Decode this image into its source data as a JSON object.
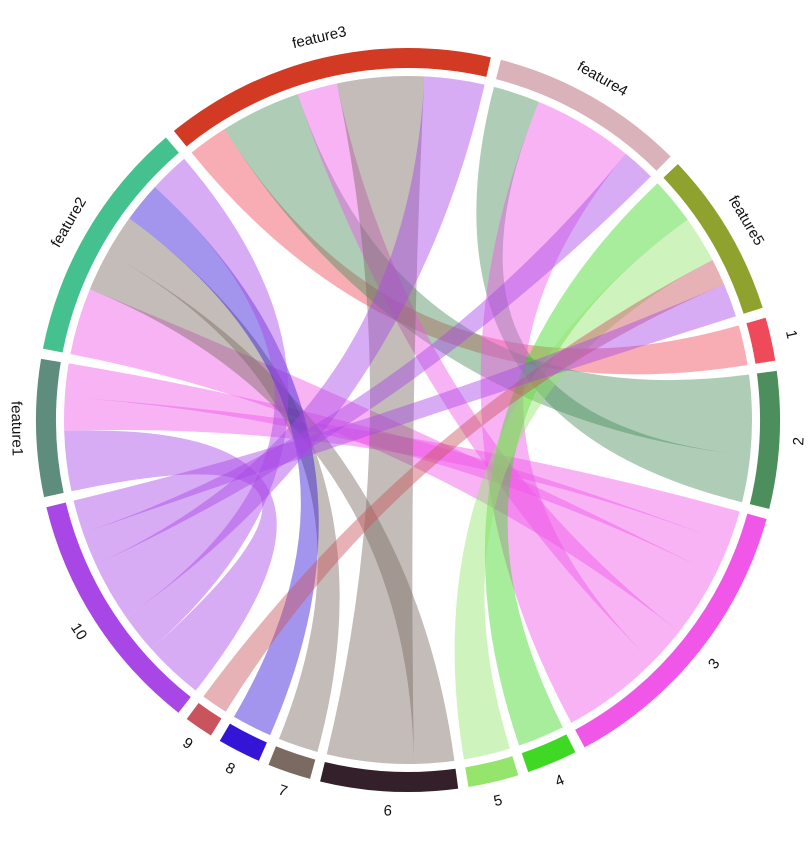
{
  "chart_data": {
    "type": "chord",
    "title": "",
    "sectors": [
      {
        "name": "feature3",
        "label": "feature3",
        "color": "#d23a24",
        "side": "feature"
      },
      {
        "name": "feature4",
        "label": "feature4",
        "color": "#d9b3b9",
        "side": "feature"
      },
      {
        "name": "feature5",
        "label": "feature5",
        "color": "#8fa22e",
        "side": "feature"
      },
      {
        "name": "1",
        "label": "1",
        "color": "#ef4a5a",
        "side": "group"
      },
      {
        "name": "2",
        "label": "2",
        "color": "#4c8f5d",
        "side": "group"
      },
      {
        "name": "3",
        "label": "3",
        "color": "#f057e8",
        "side": "group"
      },
      {
        "name": "4",
        "label": "4",
        "color": "#3fd824",
        "side": "group"
      },
      {
        "name": "5",
        "label": "5",
        "color": "#95e56c",
        "side": "group"
      },
      {
        "name": "6",
        "label": "6",
        "color": "#33202a",
        "side": "group"
      },
      {
        "name": "7",
        "label": "7",
        "color": "#7a6a62",
        "side": "group"
      },
      {
        "name": "8",
        "label": "8",
        "color": "#3415d8",
        "side": "group"
      },
      {
        "name": "9",
        "label": "9",
        "color": "#c9545e",
        "side": "group"
      },
      {
        "name": "10",
        "label": "10",
        "color": "#a846e6",
        "side": "group"
      },
      {
        "name": "feature1",
        "label": "feature1",
        "color": "#5e8d7d",
        "side": "feature"
      },
      {
        "name": "feature2",
        "label": "feature2",
        "color": "#45c190",
        "side": "feature"
      }
    ],
    "links": [
      {
        "feature": "feature1",
        "group": "10",
        "value": 4.5,
        "color": "#a846e6"
      },
      {
        "feature": "feature1",
        "group": "3",
        "value": 2.5,
        "color": "#f057e8"
      },
      {
        "feature": "feature1",
        "group": "3",
        "value": 2.5,
        "color": "#f057e8"
      },
      {
        "feature": "feature2",
        "group": "3",
        "value": 5.0,
        "color": "#f057e8"
      },
      {
        "feature": "feature2",
        "group": "6",
        "value": 3.0,
        "color": "#7a6a62"
      },
      {
        "feature": "feature2",
        "group": "7",
        "value": 3.0,
        "color": "#7a6a62"
      },
      {
        "feature": "feature2",
        "group": "8",
        "value": 3.0,
        "color": "#3415d8"
      },
      {
        "feature": "feature2",
        "group": "10",
        "value": 3.0,
        "color": "#a846e6"
      },
      {
        "feature": "feature3",
        "group": "1",
        "value": 3.0,
        "color": "#ef4a5a"
      },
      {
        "feature": "feature3",
        "group": "2",
        "value": 6.0,
        "color": "#4c8f5d"
      },
      {
        "feature": "feature3",
        "group": "3",
        "value": 3.0,
        "color": "#f057e8"
      },
      {
        "feature": "feature3",
        "group": "6",
        "value": 6.5,
        "color": "#7a6a62"
      },
      {
        "feature": "feature3",
        "group": "10",
        "value": 4.5,
        "color": "#a846e6"
      },
      {
        "feature": "feature4",
        "group": "2",
        "value": 3.5,
        "color": "#4c8f5d"
      },
      {
        "feature": "feature4",
        "group": "3",
        "value": 7.5,
        "color": "#f057e8"
      },
      {
        "feature": "feature4",
        "group": "10",
        "value": 2.5,
        "color": "#a846e6"
      },
      {
        "feature": "feature5",
        "group": "4",
        "value": 3.5,
        "color": "#3fd824"
      },
      {
        "feature": "feature5",
        "group": "5",
        "value": 3.5,
        "color": "#95e56c"
      },
      {
        "feature": "feature5",
        "group": "9",
        "value": 2.0,
        "color": "#c9545e"
      },
      {
        "feature": "feature5",
        "group": "10",
        "value": 2.5,
        "color": "#a846e6"
      }
    ]
  }
}
